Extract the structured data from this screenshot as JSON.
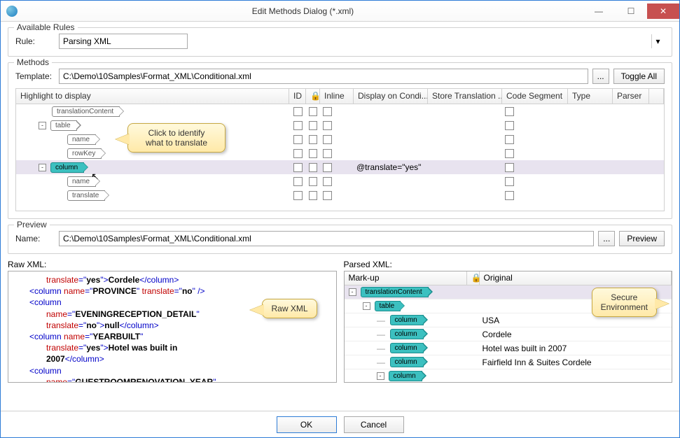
{
  "window": {
    "title": "Edit Methods Dialog (*.xml)"
  },
  "available_rules": {
    "legend": "Available Rules",
    "rule_label": "Rule:",
    "rule_value": "Parsing XML"
  },
  "methods": {
    "legend": "Methods",
    "template_label": "Template:",
    "template_path": "C:\\Demo\\10Samples\\Format_XML\\Conditional.xml",
    "browse_label": "...",
    "toggle_all_label": "Toggle All",
    "columns": {
      "highlight": "Highlight to display",
      "id": "ID",
      "lock": "",
      "inline": "Inline",
      "display_on_condi": "Display on Condi...",
      "store_translation": "Store Translation ...",
      "code_segment": "Code Segment",
      "type": "Type",
      "parser": "Parser"
    },
    "rows": [
      {
        "indent": 1,
        "label": "translationContent",
        "expand": null,
        "teal": false,
        "display": "",
        "sel": false
      },
      {
        "indent": 1,
        "label": "table",
        "expand": "-",
        "teal": false,
        "display": "",
        "sel": false
      },
      {
        "indent": 2,
        "label": "name",
        "expand": null,
        "teal": false,
        "display": "",
        "sel": false
      },
      {
        "indent": 2,
        "label": "rowKey",
        "expand": null,
        "teal": false,
        "display": "",
        "sel": false
      },
      {
        "indent": 1,
        "label": "column",
        "expand": "-",
        "teal": true,
        "display": "@translate=\"yes\"",
        "sel": true
      },
      {
        "indent": 2,
        "label": "name",
        "expand": null,
        "teal": false,
        "display": "",
        "sel": false
      },
      {
        "indent": 2,
        "label": "translate",
        "expand": null,
        "teal": false,
        "display": "",
        "sel": false
      }
    ],
    "callout": "Click to identify\nwhat to translate"
  },
  "preview": {
    "legend": "Preview",
    "name_label": "Name:",
    "name_value": "C:\\Demo\\10Samples\\Format_XML\\Conditional.xml",
    "browse_label": "...",
    "preview_label": "Preview"
  },
  "raw": {
    "label": "Raw XML:",
    "callout": "Raw XML",
    "lines": [
      {
        "indent": 2,
        "parts": [
          {
            "c": "r",
            "t": "translate"
          },
          {
            "c": "b",
            "t": "=\""
          },
          {
            "c": "k",
            "t": "yes"
          },
          {
            "c": "b",
            "t": "\">"
          },
          {
            "c": "k",
            "t": "Cordele"
          },
          {
            "c": "b",
            "t": "</column>"
          }
        ]
      },
      {
        "indent": 1,
        "parts": [
          {
            "c": "b",
            "t": "<column "
          },
          {
            "c": "r",
            "t": "name"
          },
          {
            "c": "b",
            "t": "=\""
          },
          {
            "c": "k",
            "t": "PROVINCE"
          },
          {
            "c": "b",
            "t": "\" "
          },
          {
            "c": "r",
            "t": "translate"
          },
          {
            "c": "b",
            "t": "=\""
          },
          {
            "c": "k",
            "t": "no"
          },
          {
            "c": "b",
            "t": "\" />"
          }
        ]
      },
      {
        "indent": 1,
        "parts": [
          {
            "c": "b",
            "t": "<column"
          }
        ]
      },
      {
        "indent": 2,
        "parts": [
          {
            "c": "r",
            "t": "name"
          },
          {
            "c": "b",
            "t": "=\""
          },
          {
            "c": "k",
            "t": "EVENINGRECEPTION_DETAIL"
          },
          {
            "c": "b",
            "t": "\""
          }
        ]
      },
      {
        "indent": 2,
        "parts": [
          {
            "c": "r",
            "t": "translate"
          },
          {
            "c": "b",
            "t": "=\""
          },
          {
            "c": "k",
            "t": "no"
          },
          {
            "c": "b",
            "t": "\">"
          },
          {
            "c": "k",
            "t": "null"
          },
          {
            "c": "b",
            "t": "</column>"
          }
        ]
      },
      {
        "indent": 1,
        "parts": [
          {
            "c": "b",
            "t": "<column "
          },
          {
            "c": "r",
            "t": "name"
          },
          {
            "c": "b",
            "t": "=\""
          },
          {
            "c": "k",
            "t": "YEARBUILT"
          },
          {
            "c": "b",
            "t": "\""
          }
        ]
      },
      {
        "indent": 2,
        "parts": [
          {
            "c": "r",
            "t": "translate"
          },
          {
            "c": "b",
            "t": "=\""
          },
          {
            "c": "k",
            "t": "yes"
          },
          {
            "c": "b",
            "t": "\">"
          },
          {
            "c": "k",
            "t": "Hotel was built in"
          }
        ]
      },
      {
        "indent": 2,
        "parts": [
          {
            "c": "k",
            "t": "2007"
          },
          {
            "c": "b",
            "t": "</column>"
          }
        ]
      },
      {
        "indent": 1,
        "parts": [
          {
            "c": "b",
            "t": "<column"
          }
        ]
      },
      {
        "indent": 2,
        "parts": [
          {
            "c": "r",
            "t": "name"
          },
          {
            "c": "b",
            "t": "=\""
          },
          {
            "c": "k",
            "t": "GUESTROOMRENOVATION_YEAR"
          },
          {
            "c": "b",
            "t": "\""
          }
        ]
      }
    ]
  },
  "parsed": {
    "label": "Parsed XML:",
    "callout": "Secure\nEnvironment",
    "columns": {
      "markup": "Mark-up",
      "lock": "",
      "original": "Original"
    },
    "rows": [
      {
        "indent": 0,
        "exp": "-",
        "label": "translationContent",
        "orig": "",
        "sel": true
      },
      {
        "indent": 1,
        "exp": "-",
        "label": "table",
        "orig": "",
        "sel": false
      },
      {
        "indent": 2,
        "exp": "",
        "label": "column",
        "orig": "USA",
        "sel": false
      },
      {
        "indent": 2,
        "exp": "",
        "label": "column",
        "orig": "Cordele",
        "sel": false
      },
      {
        "indent": 2,
        "exp": "",
        "label": "column",
        "orig": "Hotel was built in 2007",
        "sel": false
      },
      {
        "indent": 2,
        "exp": "",
        "label": "column",
        "orig": "Fairfield Inn & Suites Cordele",
        "sel": false
      },
      {
        "indent": 2,
        "exp": "-",
        "label": "column",
        "orig": "",
        "sel": false
      }
    ]
  },
  "buttons": {
    "ok": "OK",
    "cancel": "Cancel"
  },
  "colors": {
    "teal": "#3cc0c0",
    "sel_row": "#e8e3ef",
    "callout_bg": "#ffe9a8",
    "blue": "#0000c8",
    "red": "#c00000",
    "close": "#c75050",
    "border_primary": "#2e7cd6"
  }
}
